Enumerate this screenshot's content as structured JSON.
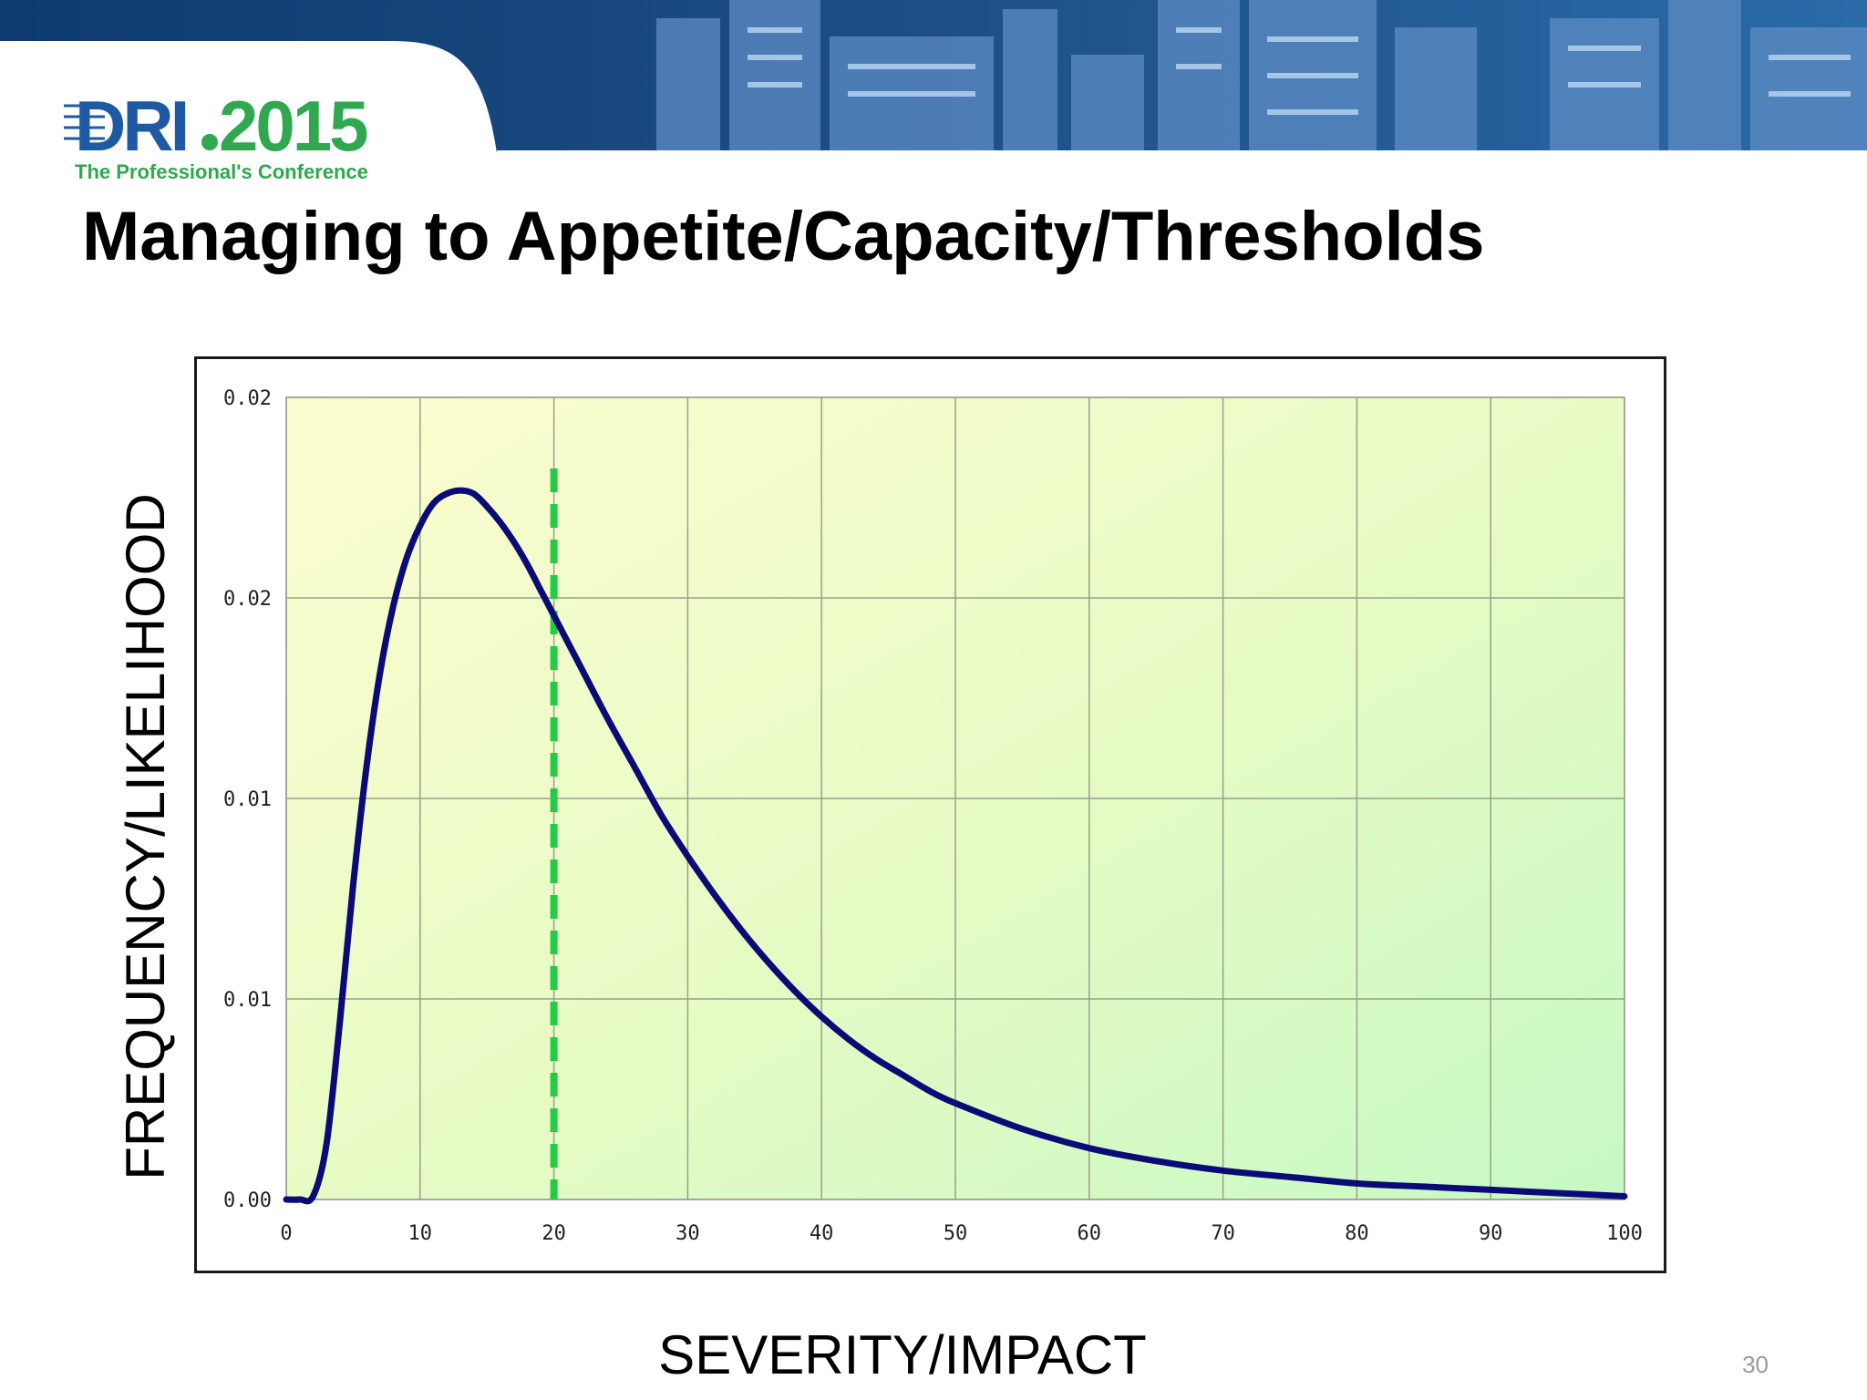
{
  "slide": {
    "title": "Managing to Appetite/Capacity/Thresholds",
    "page_number": "30"
  },
  "logo": {
    "brand_dri": "DRI",
    "brand_year": "2015",
    "tagline": "The Professional's Conference"
  },
  "colors": {
    "banner_blue": "#1d4f86",
    "logo_blue": "#1e5aa3",
    "logo_green": "#2fa84f",
    "curve": "#0b0b78",
    "threshold": "#22cc44"
  },
  "chart_data": {
    "type": "line",
    "xlabel": "SEVERITY/IMPACT",
    "ylabel": "FREQUENCY/LIKELIHOOD",
    "xlim": [
      0,
      100
    ],
    "x_ticks": [
      0,
      10,
      20,
      30,
      40,
      50,
      60,
      70,
      80,
      90,
      100
    ],
    "y_ticks": [
      "0.00",
      "0.01",
      "0.01",
      "0.02",
      "0.02"
    ],
    "grid": true,
    "threshold_x": 20,
    "series": [
      {
        "x": [
          0,
          1,
          2,
          3,
          4,
          5,
          6,
          7,
          8,
          9,
          10,
          11,
          12,
          13,
          14,
          15,
          16,
          17,
          18,
          19,
          20,
          22,
          24,
          26,
          28,
          30,
          32,
          34,
          36,
          38,
          40,
          42,
          44,
          46,
          48,
          50,
          55,
          60,
          65,
          70,
          75,
          80,
          85,
          90,
          95,
          100
        ],
        "y": [
          0.0,
          0.0,
          0.0001,
          0.0017,
          0.0055,
          0.0098,
          0.0135,
          0.0164,
          0.0185,
          0.02,
          0.021,
          0.0217,
          0.022,
          0.0221,
          0.022,
          0.0216,
          0.0211,
          0.0205,
          0.0198,
          0.019,
          0.0182,
          0.0166,
          0.015,
          0.0135,
          0.012,
          0.0107,
          0.0095,
          0.0084,
          0.0074,
          0.0065,
          0.0057,
          0.005,
          0.0044,
          0.0039,
          0.0034,
          0.003,
          0.0022,
          0.0016,
          0.0012,
          0.0009,
          0.0007,
          0.0005,
          0.0004,
          0.0003,
          0.0002,
          0.0001
        ]
      }
    ]
  }
}
